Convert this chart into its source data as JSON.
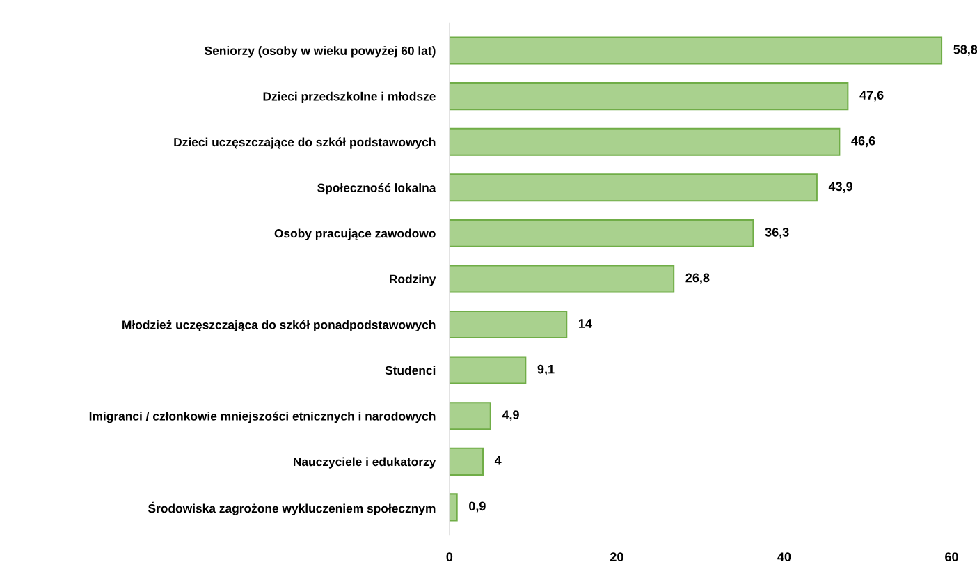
{
  "chart_data": {
    "type": "bar",
    "orientation": "horizontal",
    "categories": [
      "Seniorzy (osoby w wieku powyżej 60 lat)",
      "Dzieci przedszkolne i młodsze",
      "Dzieci uczęszczające do szkół podstawowych",
      "Społeczność lokalna",
      "Osoby pracujące zawodowo",
      "Rodziny",
      "Młodzież uczęszczająca do szkół ponadpodstawowych",
      "Studenci",
      "Imigranci / członkowie mniejszości etnicznych i narodowych",
      "Nauczyciele i edukatorzy",
      "Środowiska zagrożone wykluczeniem społecznym"
    ],
    "values": [
      58.8,
      47.6,
      46.6,
      43.9,
      36.3,
      26.8,
      14,
      9.1,
      4.9,
      4,
      0.9
    ],
    "value_labels": [
      "58,8",
      "47,6",
      "46,6",
      "43,9",
      "36,3",
      "26,8",
      "14",
      "9,1",
      "4,9",
      "4",
      "0,9"
    ],
    "color": "#a9d18e",
    "xlim": [
      0,
      60
    ],
    "xticks": [
      0,
      20,
      40,
      60
    ],
    "grid": false,
    "legend": false
  }
}
